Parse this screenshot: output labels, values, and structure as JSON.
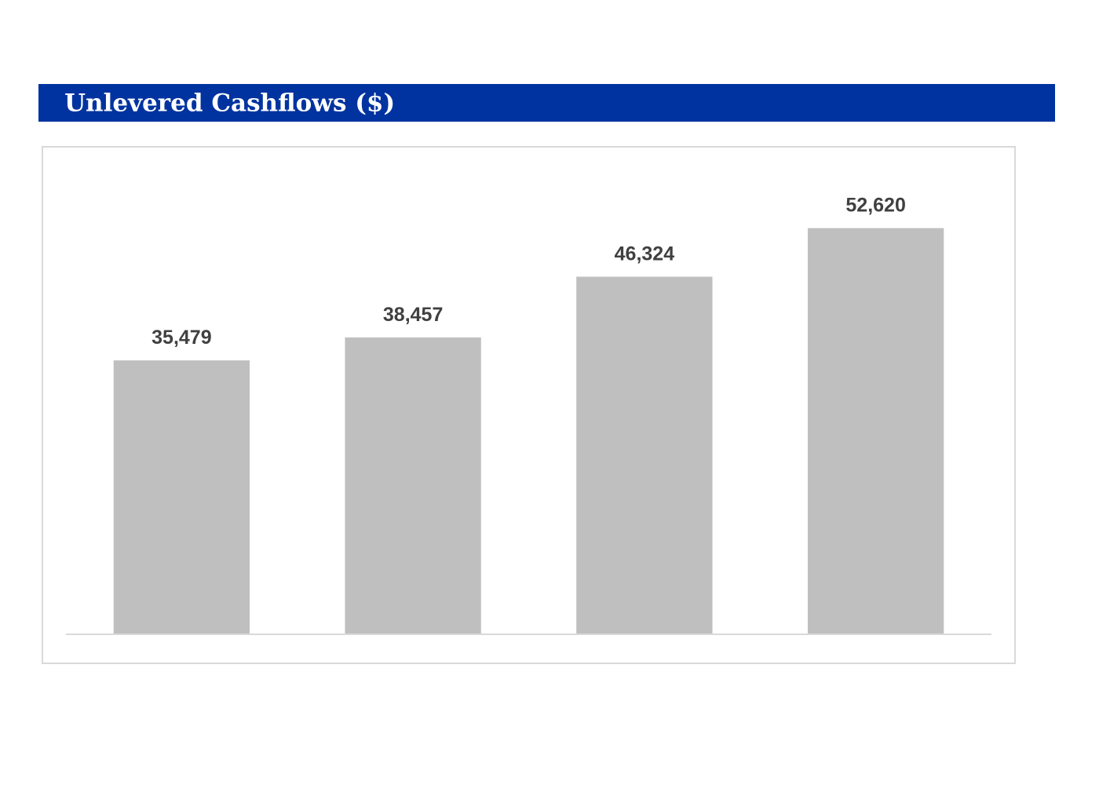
{
  "chart_data": {
    "type": "bar",
    "title": "Unlevered Cashflows ($)",
    "categories": [
      null,
      null,
      null,
      null
    ],
    "values": [
      35479,
      38457,
      46324,
      52620
    ],
    "value_labels": [
      "35,479",
      "38,457",
      "46,324",
      "52,620"
    ],
    "color": "#bfbfbf",
    "ylim": [
      0,
      60000
    ]
  }
}
